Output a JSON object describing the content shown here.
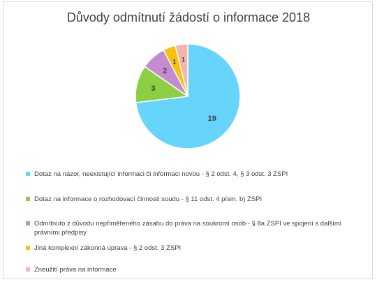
{
  "chart_data": {
    "type": "pie",
    "title": "Důvody odmítnutí žádostí o informace 2018",
    "categories": [
      "Dotaz na názor, neexistující informaci či informaci novou - § 2 odst. 4, § 3 odst. 3 ZSPI",
      "Dotaz na informace o rozhodovací činnosti soudu - § 11 odst. 4 písm. b) ZSPI",
      "Odmítnuto z důvodu nepřiměřeného zásahu do práva na soukromí osob - § 8a ZSPI ve spojení s dalšími právními předpisy",
      "Jiná komplexní zákonná úprava - § 2 odst. 3 ZSPI",
      "Zneužití práva na informace"
    ],
    "values": [
      19,
      3,
      2,
      1,
      1
    ],
    "data_labels": [
      "19",
      "3",
      "2",
      "1",
      "1"
    ],
    "colors": [
      "#66d4fb",
      "#8ccf42",
      "#c38cd0",
      "#f8c10d",
      "#f8b4aa"
    ],
    "legend_position": "bottom"
  }
}
